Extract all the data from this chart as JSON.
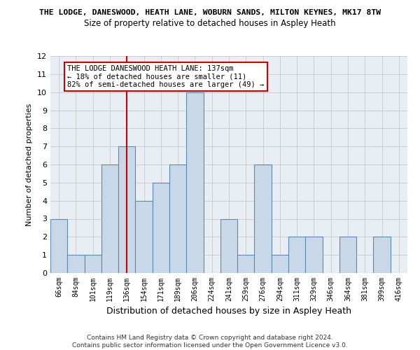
{
  "title_line1": "THE LODGE, DANESWOOD, HEATH LANE, WOBURN SANDS, MILTON KEYNES, MK17 8TW",
  "title_line2": "Size of property relative to detached houses in Aspley Heath",
  "xlabel": "Distribution of detached houses by size in Aspley Heath",
  "ylabel": "Number of detached properties",
  "categories": [
    "66sqm",
    "84sqm",
    "101sqm",
    "119sqm",
    "136sqm",
    "154sqm",
    "171sqm",
    "189sqm",
    "206sqm",
    "224sqm",
    "241sqm",
    "259sqm",
    "276sqm",
    "294sqm",
    "311sqm",
    "329sqm",
    "346sqm",
    "364sqm",
    "381sqm",
    "399sqm",
    "416sqm"
  ],
  "values": [
    3,
    1,
    1,
    6,
    7,
    4,
    5,
    6,
    10,
    0,
    3,
    1,
    6,
    1,
    2,
    2,
    0,
    2,
    0,
    2,
    0
  ],
  "bar_color": "#c8d8e8",
  "bar_edge_color": "#5a8ab0",
  "highlight_index": 4,
  "highlight_line_color": "#cc0000",
  "annotation_text": "THE LODGE DANESWOOD HEATH LANE: 137sqm\n← 18% of detached houses are smaller (11)\n82% of semi-detached houses are larger (49) →",
  "annotation_box_color": "#ffffff",
  "annotation_box_edge_color": "#cc0000",
  "ylim": [
    0,
    12
  ],
  "yticks": [
    0,
    1,
    2,
    3,
    4,
    5,
    6,
    7,
    8,
    9,
    10,
    11,
    12
  ],
  "footer_line1": "Contains HM Land Registry data © Crown copyright and database right 2024.",
  "footer_line2": "Contains public sector information licensed under the Open Government Licence v3.0.",
  "grid_color": "#cccccc",
  "background_color": "#e8eef4"
}
